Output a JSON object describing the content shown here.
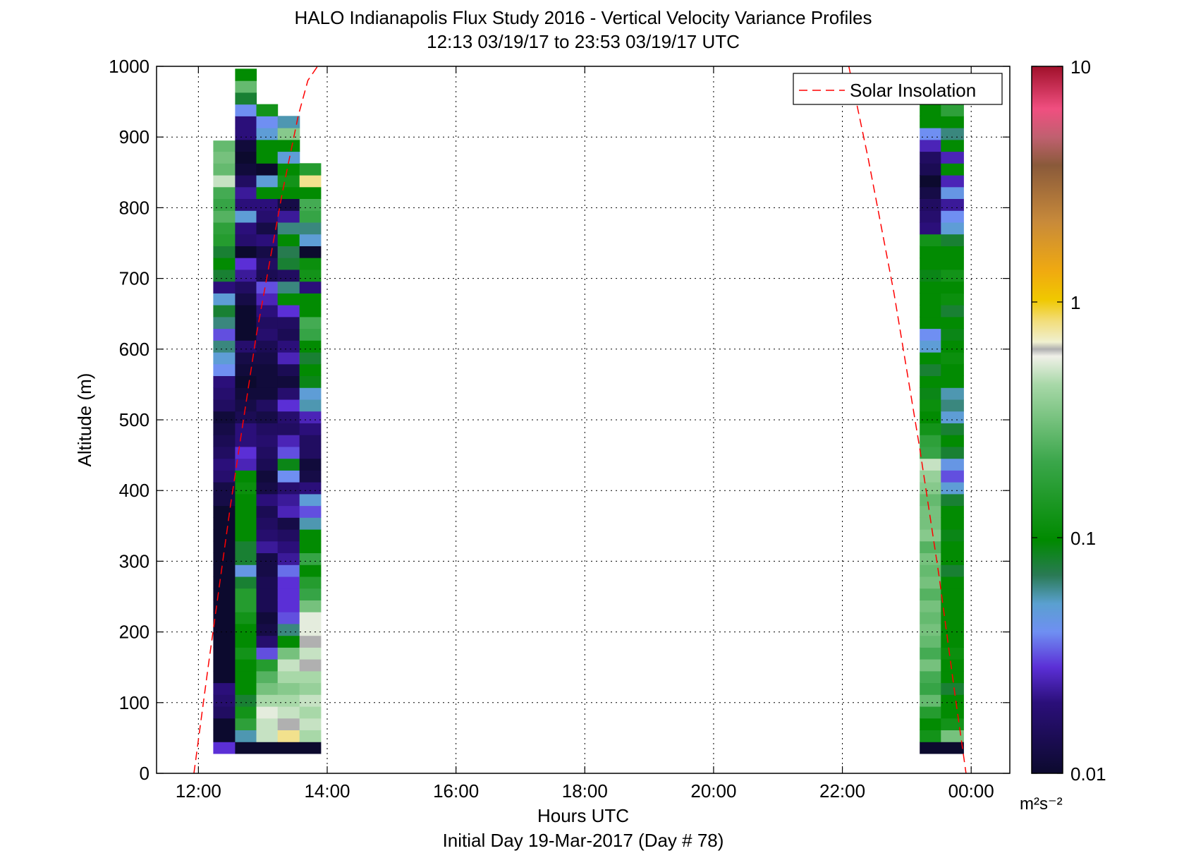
{
  "title_line1": "HALO Indianapolis Flux Study 2016 - Vertical Velocity Variance Profiles",
  "title_line2": "12:13 03/19/17 to 23:53 03/19/17  UTC",
  "footer": "Initial Day 19-Mar-2017 (Day # 78)",
  "colorbar_unit": "m²s⁻²",
  "chart_data": {
    "type": "heatmap",
    "title": "HALO Indianapolis Flux Study 2016 - Vertical Velocity Variance Profiles",
    "subtitle": "12:13 03/19/17 to 23:53 03/19/17  UTC",
    "xlabel": "Hours UTC",
    "ylabel": "Altitude (m)",
    "xlim": [
      11.35,
      24.6
    ],
    "ylim": [
      0,
      1000
    ],
    "x_ticks": [
      12,
      14,
      16,
      18,
      20,
      22,
      24
    ],
    "x_tick_labels": [
      "12:00",
      "14:00",
      "16:00",
      "18:00",
      "20:00",
      "22:00",
      "00:00"
    ],
    "y_ticks": [
      0,
      100,
      200,
      300,
      400,
      500,
      600,
      700,
      800,
      900,
      1000
    ],
    "y_tick_labels": [
      "0",
      "100",
      "200",
      "300",
      "400",
      "500",
      "600",
      "700",
      "800",
      "900",
      "1000"
    ],
    "grid": true,
    "legend": {
      "entries": [
        "Solar Insolation"
      ],
      "position": "top-right"
    },
    "colorbar": {
      "scale": "log",
      "min": 0.01,
      "max": 10,
      "tick_labels": [
        "0.01",
        "0.1",
        "1",
        "10"
      ],
      "unit": "m^2s^-2"
    },
    "altitude_bin_m": 16.7,
    "first_bin_bottom_m": 28,
    "profile_columns": [
      {
        "x_start": 12.23,
        "x_end": 12.57,
        "top_m": 895,
        "coarse_bins": 3
      },
      {
        "x_start": 12.57,
        "x_end": 12.9,
        "top_m": 1000,
        "coarse_bins": 3
      },
      {
        "x_start": 12.9,
        "x_end": 13.23,
        "top_m": 1000,
        "coarse_bins": 3
      },
      {
        "x_start": 13.23,
        "x_end": 13.57,
        "top_m": 1000,
        "coarse_bins": 3
      },
      {
        "x_start": 13.57,
        "x_end": 13.9,
        "top_m": 1000,
        "coarse_bins": 3
      },
      {
        "x_start": 23.2,
        "x_end": 23.53,
        "top_m": 1000,
        "coarse_bins": 3
      },
      {
        "x_start": 23.53,
        "x_end": 23.88,
        "top_m": 1000,
        "coarse_bins": 3
      }
    ],
    "variance_levels_log10_by_column": [
      [
        -1.55,
        -2,
        -2.2,
        -1.8,
        -1.75,
        -1.7,
        -2,
        -2,
        -2,
        -2,
        -2,
        -2,
        -2,
        -2,
        -2,
        -2,
        -2,
        -2,
        -2,
        -2,
        -2,
        -1.9,
        -1.9,
        -1.75,
        -1.7,
        -1.8,
        -1.85,
        -1.9,
        -1.95,
        -1.8,
        -1.75,
        -1.7,
        -1.4,
        -1.3,
        -1.2,
        -1.5,
        -1.2,
        -1.1,
        -1.3,
        -1.7,
        -1.1,
        -1.0,
        -1.1,
        -0.8,
        -0.75,
        -0.6,
        -0.7,
        -0.65,
        -0.3,
        -0.55,
        -0.5,
        -0.55,
        -1.8,
        -1.55,
        -1.5
      ],
      [
        -2,
        -1.25,
        -0.75,
        -0.9,
        -1.1,
        -1.0,
        -1.0,
        -1.0,
        -0.9,
        -1.0,
        -1.0,
        -0.9,
        -0.8,
        -0.8,
        -1.1,
        -1.35,
        -1.1,
        -1.1,
        -1.0,
        -1.0,
        -1.0,
        -1.0,
        -0.95,
        -1.0,
        -1.6,
        -1.55,
        -1.7,
        -1.7,
        -1.85,
        -1.9,
        -1.95,
        -2,
        -1.95,
        -1.9,
        -1.75,
        -2,
        -2,
        -2,
        -1.9,
        -1.8,
        -1.65,
        -1.55,
        -2,
        -1.75,
        -1.7,
        -1.3,
        -1.7,
        -1.65,
        -1.8,
        -1.95,
        -2,
        -1.95,
        -1.7,
        -1.7,
        -1.4,
        -1.1,
        -0.55,
        -1.0
      ],
      [
        -2,
        -0.3,
        -0.3,
        -0.25,
        -0.35,
        -0.5,
        -0.6,
        -0.8,
        -1.5,
        -1.75,
        -1.9,
        -1.95,
        -1.85,
        -1.85,
        -1.85,
        -1.9,
        -1.9,
        -1.65,
        -1.75,
        -1.8,
        -1.85,
        -1.7,
        -1.9,
        -1.95,
        -1.85,
        -1.8,
        -1.75,
        -1.8,
        -1.9,
        -1.8,
        -1.95,
        -1.95,
        -1.95,
        -1.9,
        -1.85,
        -1.75,
        -1.8,
        -1.7,
        -1.6,
        -1.5,
        -1.85,
        -1.8,
        -1.9,
        -1.7,
        -1.9,
        -1.75,
        -1.7,
        -1.0,
        -1.3,
        -2,
        -1.0,
        -1.0,
        -1.3,
        -1.4,
        -0.9
      ],
      [
        -2,
        -0.1,
        -0.2,
        -0.3,
        -0.35,
        -0.45,
        -0.35,
        -0.3,
        -0.5,
        -1.0,
        -1.2,
        -1.5,
        -1.55,
        -1.55,
        -1.55,
        -1.45,
        -1.65,
        -1.7,
        -1.8,
        -1.9,
        -1.6,
        -1.65,
        -1.75,
        -1.4,
        -1.05,
        -1.5,
        -1.6,
        -1.8,
        -1.75,
        -1.55,
        -1.75,
        -1.95,
        -1.85,
        -1.6,
        -1.7,
        -1.85,
        -1.8,
        -1.55,
        -1.0,
        -1.2,
        -1.8,
        -1.1,
        -1.15,
        -1.0,
        -1.2,
        -1.65,
        -1.9,
        -1.0,
        -0.9,
        -1.0,
        -1.3,
        -1.0,
        -0.45,
        -1.25
      ],
      [
        -2,
        -0.35,
        -0.3,
        -0.35,
        -0.3,
        -0.4,
        -0.35,
        -0.2,
        -0.3,
        -0.2,
        -0.25,
        -0.25,
        -0.5,
        -0.7,
        -0.8,
        -1.0,
        -0.7,
        -1.0,
        -1.0,
        -1.25,
        -1.5,
        -1.3,
        -1.7,
        -1.9,
        -1.95,
        -1.8,
        -1.8,
        -1.7,
        -1.6,
        -1.25,
        -1.3,
        -1.05,
        -1.0,
        -1.1,
        -1.0,
        -0.7,
        -0.65,
        -1.0,
        -1.0,
        -1.7,
        -0.9,
        -0.95,
        -2,
        -1.3,
        -1.2,
        -0.7,
        -0.65,
        -1.0,
        -0.1,
        -0.8
      ]
    ],
    "variance_levels_log10_right_columns": [
      [
        -2,
        -0.9,
        -1.0,
        -0.8,
        -0.55,
        -0.7,
        -0.65,
        -0.5,
        -0.65,
        -0.55,
        -0.5,
        -0.55,
        -0.5,
        -0.6,
        -0.5,
        -0.55,
        -0.5,
        -0.6,
        -0.45,
        -0.5,
        -0.5,
        -0.55,
        -0.45,
        -0.4,
        -0.3,
        -0.7,
        -0.75,
        -0.9,
        -1.0,
        -0.95,
        -1.05,
        -1.0,
        -1.1,
        -1.0,
        -1.3,
        -1.4,
        -1.0,
        -1.0,
        -1.0,
        -1.0,
        -1.05,
        -1.0,
        -1.0,
        -0.9,
        -1.7,
        -1.75,
        -1.8,
        -1.9,
        -2,
        -1.85,
        -1.8,
        -1.6,
        -1.4,
        -1.0,
        -1.0,
        -1.0,
        -0.5
      ],
      [
        -2,
        -0.5,
        -0.9,
        -1.0,
        -1.0,
        -1.1,
        -1.0,
        -1.0,
        -0.95,
        -1.0,
        -1.0,
        -1.0,
        -1.0,
        -1.0,
        -1.0,
        -1.1,
        -1.0,
        -1.0,
        -1.05,
        -1.0,
        -1.0,
        -1.1,
        -1.3,
        -1.5,
        -1.35,
        -1.1,
        -1.0,
        -1.1,
        -1.3,
        -1.2,
        -1.25,
        -1.0,
        -1.0,
        -0.95,
        -1.0,
        -1.05,
        -1.0,
        -1.1,
        -0.95,
        -1.0,
        -0.9,
        -1.0,
        -1.0,
        -1.1,
        -1.3,
        -1.4,
        -1.65,
        -1.35,
        -1.6,
        -1.0,
        -1.6,
        -1.0,
        -1.2,
        -1.0,
        -0.75,
        -1.3,
        -0.45
      ]
    ],
    "series": [
      {
        "name": "Solar Insolation",
        "style": "dashed",
        "color": "#ff0000",
        "x": [
          11.93,
          12.15,
          12.5,
          12.9,
          13.3,
          13.55,
          13.7,
          13.85
        ],
        "y": [
          0,
          150,
          380,
          620,
          820,
          930,
          980,
          1000
        ]
      },
      {
        "name": "Solar Insolation",
        "style": "dashed",
        "color": "#ff0000",
        "x": [
          22.1,
          22.4,
          22.8,
          23.2,
          23.5,
          23.75,
          23.92
        ],
        "y": [
          1000,
          870,
          680,
          460,
          280,
          110,
          0
        ]
      }
    ]
  }
}
